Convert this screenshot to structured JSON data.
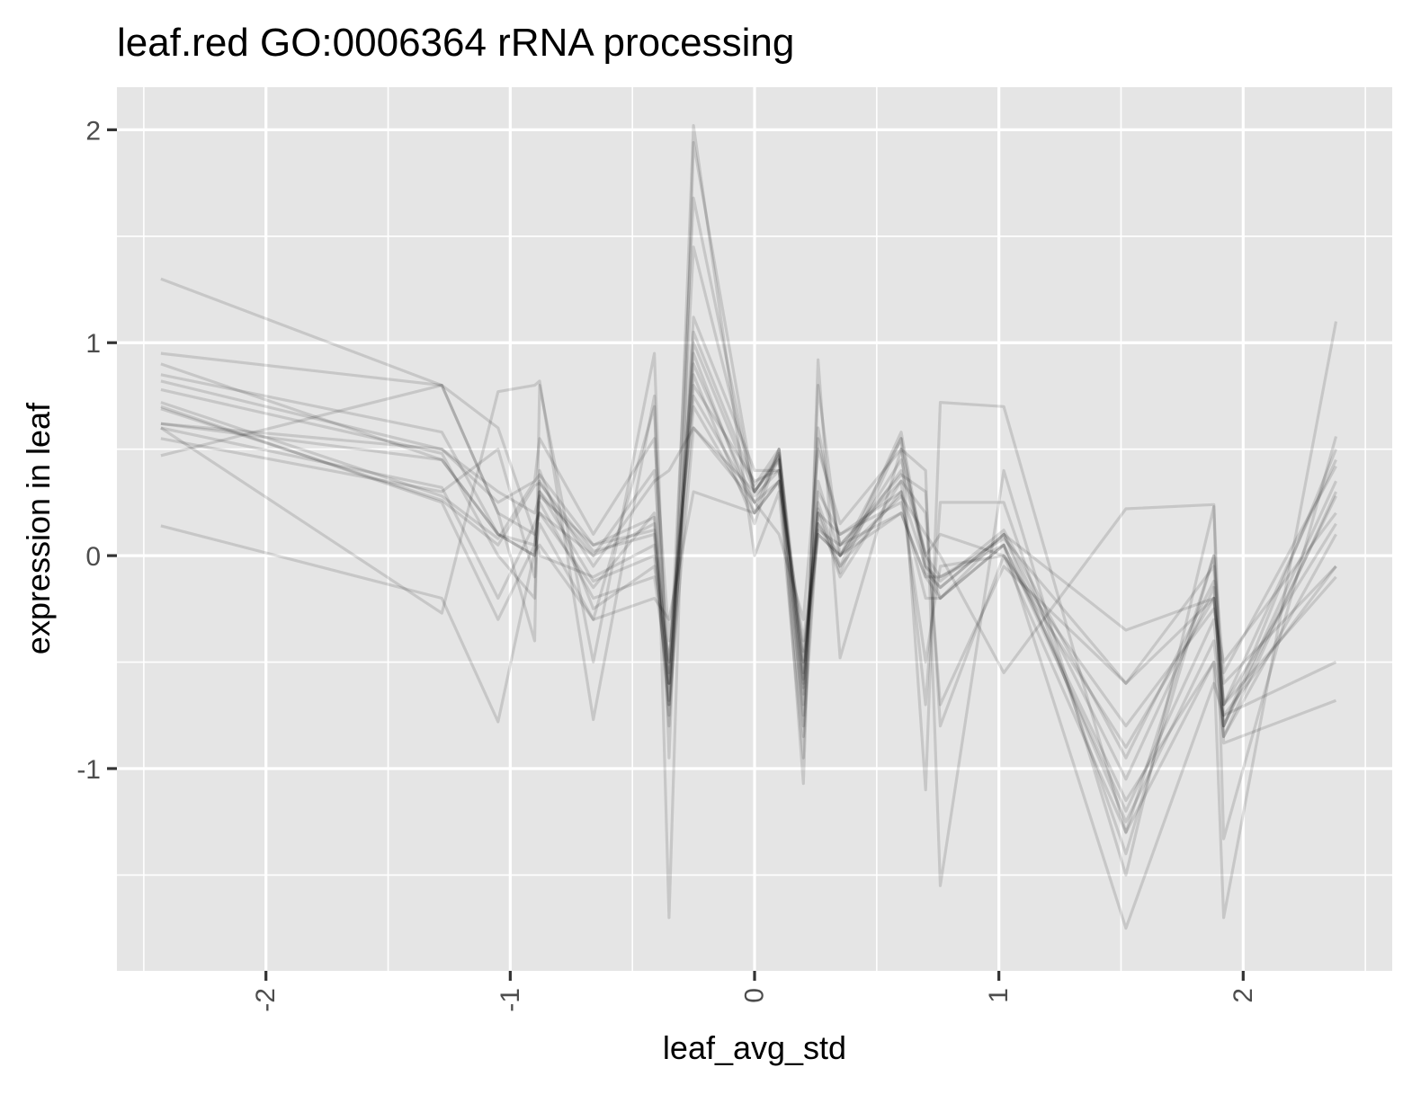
{
  "chart_data": {
    "type": "line",
    "title": "leaf.red GO:0006364 rRNA processing",
    "xlabel": "leaf_avg_std",
    "ylabel": "expression in leaf",
    "xlim": [
      -2.61,
      2.61
    ],
    "ylim": [
      -1.95,
      2.2
    ],
    "x_ticks": [
      -2,
      -1,
      0,
      1,
      2
    ],
    "x_tick_labels": [
      "-2",
      "-1",
      "0",
      "1",
      "2"
    ],
    "y_ticks": [
      -1,
      0,
      1,
      2
    ],
    "y_tick_labels": [
      "-1",
      "0",
      "1",
      "2"
    ],
    "x_minor_ticks": [
      -2.5,
      -1.5,
      -0.5,
      0.5,
      1.5,
      2.5
    ],
    "y_minor_ticks": [
      -1.5,
      -0.5,
      0.5,
      1.5
    ],
    "grid": true,
    "panel_background": "#e5e5e5",
    "line_color": "#000000",
    "line_alpha": 0.13,
    "x": [
      -2.43,
      -1.28,
      -1.05,
      -0.9,
      -0.88,
      -0.66,
      -0.41,
      -0.35,
      -0.25,
      0.0,
      0.1,
      0.2,
      0.26,
      0.35,
      0.6,
      0.7,
      0.76,
      1.02,
      1.52,
      1.88,
      1.92,
      2.38
    ],
    "series": [
      {
        "values": [
          0.72,
          0.28,
          0.08,
          0.35,
          0.38,
          0.05,
          0.12,
          -0.8,
          1.05,
          0.33,
          0.5,
          -0.58,
          0.25,
          -0.05,
          0.58,
          -0.05,
          -0.12,
          0.12,
          -0.95,
          -0.12,
          -0.85,
          0.3
        ]
      },
      {
        "values": [
          0.69,
          0.26,
          0.05,
          0.33,
          0.34,
          0.02,
          0.1,
          -0.75,
          1.0,
          0.3,
          0.47,
          -0.62,
          0.22,
          -0.08,
          0.55,
          -0.08,
          -0.15,
          0.1,
          -1.05,
          -0.15,
          -0.8,
          0.28
        ]
      },
      {
        "values": [
          0.95,
          0.8,
          0.2,
          0.1,
          0.2,
          0.0,
          0.15,
          -0.6,
          0.9,
          0.25,
          0.45,
          -0.55,
          0.1,
          0.0,
          0.4,
          0.0,
          -0.1,
          0.08,
          -0.6,
          -0.05,
          -0.75,
          -0.05
        ]
      },
      {
        "values": [
          1.3,
          0.8,
          0.6,
          0.1,
          0.0,
          -0.1,
          0.05,
          -0.5,
          0.8,
          0.35,
          0.4,
          -0.5,
          0.2,
          0.1,
          0.3,
          -0.05,
          -0.15,
          0.1,
          -0.35,
          -0.2,
          -0.7,
          -0.1
        ]
      },
      {
        "values": [
          0.14,
          -0.2,
          -0.78,
          0.02,
          0.05,
          -0.3,
          -0.2,
          -0.3,
          0.3,
          0.2,
          0.35,
          -0.45,
          0.12,
          0.05,
          0.2,
          -0.1,
          -0.2,
          0.05,
          -1.75,
          -0.6,
          -0.75,
          -0.5
        ]
      },
      {
        "values": [
          0.47,
          0.8,
          0.2,
          -0.4,
          0.8,
          -0.5,
          0.95,
          -0.95,
          2.02,
          0.0,
          0.3,
          -0.95,
          0.8,
          0.0,
          0.55,
          -1.1,
          0.72,
          0.7,
          -1.3,
          -0.5,
          -1.7,
          1.1
        ]
      },
      {
        "values": [
          0.6,
          -0.27,
          0.77,
          0.8,
          0.82,
          -0.77,
          0.75,
          -1.7,
          1.94,
          0.3,
          0.45,
          -1.07,
          0.92,
          -0.48,
          0.5,
          0.4,
          -1.55,
          0.4,
          -1.5,
          0.23,
          -1.33,
          0.56
        ]
      },
      {
        "values": [
          0.62,
          0.5,
          0.3,
          0.2,
          0.28,
          0.05,
          0.18,
          -0.7,
          1.45,
          0.3,
          0.46,
          -0.7,
          0.35,
          0.0,
          0.45,
          0.0,
          -0.2,
          0.05,
          -1.2,
          -0.3,
          -0.8,
          0.5
        ]
      },
      {
        "values": [
          0.9,
          0.45,
          0.1,
          0.05,
          0.25,
          -0.2,
          -0.1,
          -0.6,
          1.68,
          0.28,
          0.4,
          -0.65,
          0.55,
          0.05,
          0.38,
          0.3,
          -0.8,
          0.0,
          -1.3,
          0.0,
          -0.7,
          0.45
        ]
      },
      {
        "values": [
          0.85,
          0.58,
          0.1,
          0.0,
          0.3,
          -0.12,
          0.0,
          -0.68,
          1.12,
          0.4,
          0.4,
          -0.75,
          0.6,
          0.05,
          0.35,
          -0.7,
          0.25,
          0.25,
          -1.4,
          0.0,
          -0.55,
          0.42
        ]
      },
      {
        "values": [
          0.82,
          0.5,
          0.25,
          0.35,
          0.55,
          0.1,
          0.55,
          -0.4,
          0.75,
          0.25,
          0.1,
          -0.3,
          0.5,
          0.15,
          0.5,
          0.0,
          0.1,
          0.0,
          -0.9,
          -0.2,
          -0.7,
          0.15
        ]
      },
      {
        "values": [
          0.78,
          0.48,
          0.0,
          -0.2,
          0.4,
          -0.25,
          -0.05,
          -0.5,
          0.95,
          0.2,
          0.35,
          -0.85,
          0.15,
          -0.05,
          0.3,
          -0.5,
          -0.05,
          0.0,
          -0.8,
          -0.25,
          -0.5,
          0.2
        ]
      },
      {
        "values": [
          0.7,
          0.25,
          -0.3,
          0.05,
          0.3,
          0.0,
          0.4,
          -0.55,
          0.85,
          0.15,
          0.5,
          -0.6,
          0.3,
          0.1,
          0.25,
          -0.2,
          -0.2,
          0.1,
          -1.25,
          -0.4,
          -0.8,
          0.35
        ]
      },
      {
        "values": [
          0.6,
          0.32,
          -0.2,
          0.15,
          0.2,
          -0.15,
          0.2,
          -0.6,
          0.7,
          0.2,
          0.5,
          -0.5,
          0.1,
          0.0,
          0.2,
          -0.1,
          -0.1,
          0.05,
          -1.15,
          -0.5,
          -0.85,
          0.1
        ]
      },
      {
        "values": [
          0.62,
          0.45,
          0.1,
          0.0,
          0.15,
          -0.3,
          0.7,
          -0.7,
          0.6,
          0.3,
          0.48,
          -0.8,
          0.2,
          -0.1,
          0.35,
          0.2,
          -0.7,
          -0.05,
          -0.6,
          -0.2,
          -0.6,
          -0.05
        ]
      },
      {
        "values": [
          0.55,
          0.3,
          0.5,
          -0.1,
          0.35,
          -0.05,
          0.35,
          0.4,
          0.6,
          0.25,
          0.35,
          -0.4,
          0.15,
          0.0,
          0.28,
          0.1,
          0.0,
          -0.55,
          0.22,
          0.24,
          -0.88,
          -0.68
        ]
      }
    ]
  }
}
